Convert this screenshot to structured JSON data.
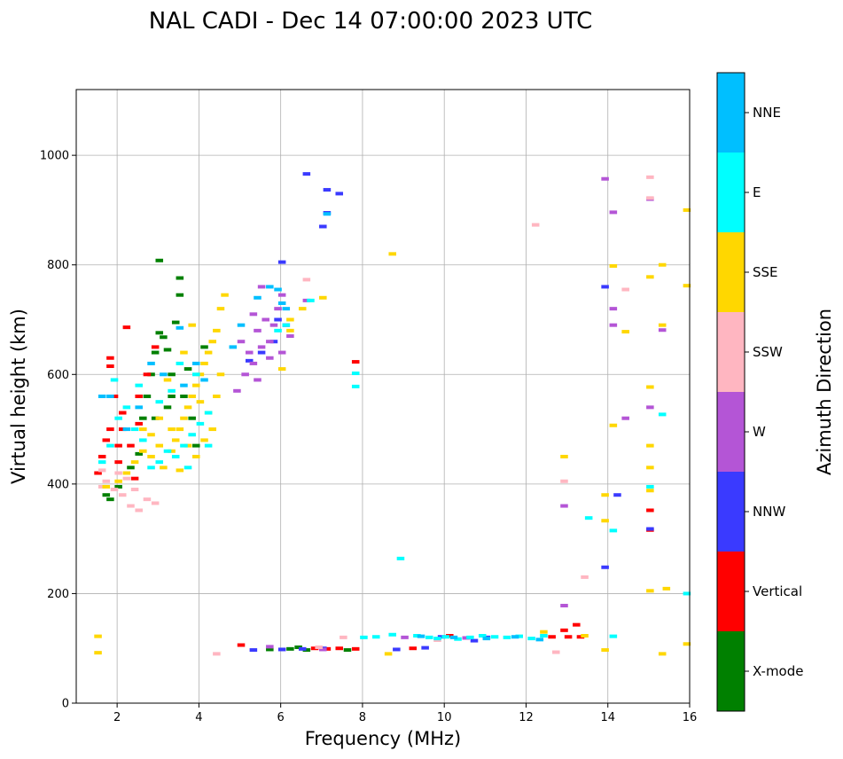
{
  "chart_data": {
    "type": "scatter",
    "title": "NAL CADI - Dec 14 07:00:00 2023 UTC",
    "xlabel": "Frequency (MHz)",
    "ylabel": "Virtual height (km)",
    "xlim": [
      1,
      16
    ],
    "ylim": [
      0,
      1120
    ],
    "xticks": [
      2,
      4,
      6,
      8,
      10,
      12,
      14,
      16
    ],
    "yticks": [
      0,
      200,
      400,
      600,
      800,
      1000
    ],
    "grid": true,
    "colorbar": {
      "title": "Azimuth Direction",
      "position": "right",
      "categories": [
        {
          "name": "X-mode",
          "color": "#008000"
        },
        {
          "name": "Vertical",
          "color": "#ff0000"
        },
        {
          "name": "NNW",
          "color": "#3a3aff"
        },
        {
          "name": "W",
          "color": "#b455d6"
        },
        {
          "name": "SSW",
          "color": "#ffb6c1"
        },
        {
          "name": "SSE",
          "color": "#ffd700"
        },
        {
          "name": "E",
          "color": "#00ffff"
        },
        {
          "name": "NNE",
          "color": "#00bfff"
        }
      ]
    },
    "series": [
      {
        "name": "X-mode",
        "points": [
          [
            1.7,
            380
          ],
          [
            1.8,
            372
          ],
          [
            2.0,
            395
          ],
          [
            2.3,
            430
          ],
          [
            2.5,
            455
          ],
          [
            2.6,
            520
          ],
          [
            2.8,
            600
          ],
          [
            2.9,
            640
          ],
          [
            3.0,
            676
          ],
          [
            3.1,
            668
          ],
          [
            3.2,
            645
          ],
          [
            3.3,
            600
          ],
          [
            3.4,
            695
          ],
          [
            3.5,
            776
          ],
          [
            3.5,
            745
          ],
          [
            3.0,
            808
          ],
          [
            3.6,
            560
          ],
          [
            3.8,
            520
          ],
          [
            3.9,
            470
          ],
          [
            4.1,
            650
          ],
          [
            3.2,
            540
          ],
          [
            2.9,
            520
          ],
          [
            6.6,
            97
          ],
          [
            6.2,
            99
          ],
          [
            5.7,
            98
          ],
          [
            6.4,
            102
          ],
          [
            7.6,
            97
          ],
          [
            3.7,
            610
          ],
          [
            3.3,
            560
          ],
          [
            2.7,
            560
          ]
        ]
      },
      {
        "name": "Vertical",
        "points": [
          [
            1.5,
            420
          ],
          [
            1.6,
            450
          ],
          [
            1.7,
            480
          ],
          [
            1.8,
            500
          ],
          [
            1.8,
            630
          ],
          [
            1.8,
            615
          ],
          [
            2.0,
            440
          ],
          [
            2.0,
            470
          ],
          [
            2.1,
            530
          ],
          [
            2.2,
            686
          ],
          [
            2.3,
            470
          ],
          [
            2.5,
            510
          ],
          [
            2.5,
            560
          ],
          [
            2.7,
            600
          ],
          [
            2.9,
            650
          ],
          [
            1.9,
            560
          ],
          [
            2.1,
            500
          ],
          [
            2.4,
            410
          ],
          [
            6.8,
            100
          ],
          [
            7.1,
            99
          ],
          [
            7.4,
            100
          ],
          [
            7.8,
            99
          ],
          [
            9.2,
            100
          ],
          [
            12.6,
            121
          ],
          [
            12.9,
            133
          ],
          [
            13.2,
            143
          ],
          [
            13.0,
            121
          ],
          [
            15.0,
            352
          ],
          [
            15.0,
            316
          ],
          [
            7.8,
            623
          ],
          [
            5.0,
            106
          ],
          [
            10.1,
            123
          ],
          [
            13.3,
            121
          ]
        ]
      },
      {
        "name": "NNW",
        "points": [
          [
            5.3,
            97
          ],
          [
            6.0,
            98
          ],
          [
            6.5,
            99
          ],
          [
            7.0,
            100
          ],
          [
            8.8,
            98
          ],
          [
            9.5,
            101
          ],
          [
            9.9,
            121
          ],
          [
            6.6,
            966
          ],
          [
            7.1,
            937
          ],
          [
            7.4,
            930
          ],
          [
            7.0,
            870
          ],
          [
            7.1,
            895
          ],
          [
            6.0,
            805
          ],
          [
            13.9,
            760
          ],
          [
            14.2,
            380
          ],
          [
            13.9,
            248
          ],
          [
            15.0,
            318
          ],
          [
            5.8,
            660
          ],
          [
            5.5,
            640
          ],
          [
            5.9,
            700
          ],
          [
            6.1,
            690
          ],
          [
            5.2,
            625
          ],
          [
            10.7,
            114
          ],
          [
            11.0,
            120
          ]
        ]
      },
      {
        "name": "W",
        "points": [
          [
            5.0,
            660
          ],
          [
            5.2,
            640
          ],
          [
            5.3,
            620
          ],
          [
            5.4,
            680
          ],
          [
            5.5,
            650
          ],
          [
            5.6,
            700
          ],
          [
            5.7,
            660
          ],
          [
            5.8,
            690
          ],
          [
            5.9,
            720
          ],
          [
            6.1,
            690
          ],
          [
            6.2,
            670
          ],
          [
            5.1,
            600
          ],
          [
            5.4,
            590
          ],
          [
            5.7,
            630
          ],
          [
            6.0,
            745
          ],
          [
            5.3,
            710
          ],
          [
            4.9,
            570
          ],
          [
            5.5,
            760
          ],
          [
            6.6,
            735
          ],
          [
            6.0,
            640
          ],
          [
            12.9,
            360
          ],
          [
            12.9,
            178
          ],
          [
            13.9,
            957
          ],
          [
            14.1,
            896
          ],
          [
            14.1,
            720
          ],
          [
            14.1,
            690
          ],
          [
            14.4,
            520
          ],
          [
            15.0,
            540
          ],
          [
            15.0,
            920
          ],
          [
            15.3,
            681
          ],
          [
            7.0,
            98
          ],
          [
            9.0,
            120
          ],
          [
            10.5,
            119
          ],
          [
            5.7,
            103
          ]
        ]
      },
      {
        "name": "SSW",
        "points": [
          [
            1.6,
            395
          ],
          [
            1.7,
            405
          ],
          [
            1.9,
            390
          ],
          [
            2.1,
            380
          ],
          [
            2.3,
            360
          ],
          [
            2.5,
            352
          ],
          [
            2.7,
            372
          ],
          [
            2.9,
            365
          ],
          [
            2.2,
            410
          ],
          [
            2.0,
            420
          ],
          [
            1.6,
            425
          ],
          [
            4.4,
            90
          ],
          [
            6.6,
            773
          ],
          [
            12.2,
            873
          ],
          [
            12.9,
            405
          ],
          [
            13.4,
            230
          ],
          [
            14.4,
            755
          ],
          [
            15.0,
            960
          ],
          [
            15.0,
            922
          ],
          [
            12.7,
            93
          ],
          [
            7.5,
            120
          ],
          [
            9.8,
            115
          ],
          [
            6.9,
            102
          ],
          [
            2.4,
            390
          ]
        ]
      },
      {
        "name": "SSE",
        "points": [
          [
            1.5,
            122
          ],
          [
            1.5,
            92
          ],
          [
            1.7,
            395
          ],
          [
            2.0,
            405
          ],
          [
            2.2,
            420
          ],
          [
            2.4,
            440
          ],
          [
            2.6,
            460
          ],
          [
            2.8,
            450
          ],
          [
            3.0,
            470
          ],
          [
            3.1,
            430
          ],
          [
            3.3,
            460
          ],
          [
            3.4,
            480
          ],
          [
            3.5,
            500
          ],
          [
            3.6,
            520
          ],
          [
            3.7,
            540
          ],
          [
            3.8,
            560
          ],
          [
            3.9,
            580
          ],
          [
            4.0,
            600
          ],
          [
            4.1,
            620
          ],
          [
            4.2,
            640
          ],
          [
            4.3,
            660
          ],
          [
            4.4,
            680
          ],
          [
            4.5,
            720
          ],
          [
            4.5,
            600
          ],
          [
            4.4,
            560
          ],
          [
            4.3,
            500
          ],
          [
            4.1,
            480
          ],
          [
            3.9,
            450
          ],
          [
            3.7,
            470
          ],
          [
            3.3,
            500
          ],
          [
            3.0,
            520
          ],
          [
            2.8,
            490
          ],
          [
            3.6,
            640
          ],
          [
            3.8,
            690
          ],
          [
            4.2,
            530
          ],
          [
            4.0,
            550
          ],
          [
            3.2,
            590
          ],
          [
            2.6,
            500
          ],
          [
            6.2,
            700
          ],
          [
            6.2,
            680
          ],
          [
            6.0,
            610
          ],
          [
            6.5,
            720
          ],
          [
            7.0,
            740
          ],
          [
            8.7,
            820
          ],
          [
            8.6,
            90
          ],
          [
            12.4,
            130
          ],
          [
            12.9,
            450
          ],
          [
            13.4,
            123
          ],
          [
            13.9,
            380
          ],
          [
            13.9,
            333
          ],
          [
            13.9,
            97
          ],
          [
            14.1,
            798
          ],
          [
            14.1,
            507
          ],
          [
            14.4,
            678
          ],
          [
            15.0,
            778
          ],
          [
            15.0,
            577
          ],
          [
            15.0,
            470
          ],
          [
            15.0,
            430
          ],
          [
            15.0,
            388
          ],
          [
            15.0,
            205
          ],
          [
            15.4,
            209
          ],
          [
            15.3,
            800
          ],
          [
            15.3,
            690
          ],
          [
            15.3,
            90
          ],
          [
            15.9,
            900
          ],
          [
            15.9,
            762
          ],
          [
            15.9,
            108
          ],
          [
            4.6,
            745
          ],
          [
            3.5,
            425
          ]
        ]
      },
      {
        "name": "E",
        "points": [
          [
            1.6,
            440
          ],
          [
            1.8,
            470
          ],
          [
            2.0,
            520
          ],
          [
            2.2,
            540
          ],
          [
            2.4,
            500
          ],
          [
            2.6,
            480
          ],
          [
            2.8,
            430
          ],
          [
            3.0,
            440
          ],
          [
            3.2,
            460
          ],
          [
            3.4,
            450
          ],
          [
            3.6,
            470
          ],
          [
            3.8,
            490
          ],
          [
            4.0,
            510
          ],
          [
            4.2,
            530
          ],
          [
            3.5,
            620
          ],
          [
            3.3,
            570
          ],
          [
            3.0,
            550
          ],
          [
            3.9,
            600
          ],
          [
            4.2,
            470
          ],
          [
            3.7,
            430
          ],
          [
            2.5,
            580
          ],
          [
            1.9,
            590
          ],
          [
            6.7,
            735
          ],
          [
            7.8,
            602
          ],
          [
            7.8,
            578
          ],
          [
            8.0,
            120
          ],
          [
            8.7,
            125
          ],
          [
            8.9,
            264
          ],
          [
            9.3,
            123
          ],
          [
            9.6,
            120
          ],
          [
            9.8,
            118
          ],
          [
            10.0,
            121
          ],
          [
            10.3,
            117
          ],
          [
            10.6,
            120
          ],
          [
            10.9,
            123
          ],
          [
            11.2,
            121
          ],
          [
            11.5,
            120
          ],
          [
            11.8,
            122
          ],
          [
            12.1,
            118
          ],
          [
            12.4,
            123
          ],
          [
            13.5,
            338
          ],
          [
            14.1,
            315
          ],
          [
            14.1,
            122
          ],
          [
            15.0,
            395
          ],
          [
            15.3,
            527
          ],
          [
            15.9,
            200
          ],
          [
            8.3,
            121
          ],
          [
            6.1,
            690
          ],
          [
            5.9,
            680
          ]
        ]
      },
      {
        "name": "NNE",
        "points": [
          [
            1.6,
            560
          ],
          [
            1.8,
            560
          ],
          [
            2.2,
            500
          ],
          [
            2.5,
            540
          ],
          [
            3.5,
            685
          ],
          [
            3.6,
            580
          ],
          [
            3.9,
            620
          ],
          [
            4.1,
            590
          ],
          [
            5.4,
            740
          ],
          [
            5.7,
            760
          ],
          [
            5.9,
            755
          ],
          [
            6.0,
            730
          ],
          [
            6.1,
            720
          ],
          [
            4.8,
            650
          ],
          [
            5.0,
            690
          ],
          [
            3.1,
            600
          ],
          [
            2.8,
            620
          ],
          [
            7.1,
            893
          ],
          [
            9.4,
            122
          ],
          [
            10.2,
            120
          ],
          [
            11.0,
            118
          ],
          [
            11.7,
            121
          ],
          [
            12.3,
            116
          ]
        ]
      }
    ]
  }
}
